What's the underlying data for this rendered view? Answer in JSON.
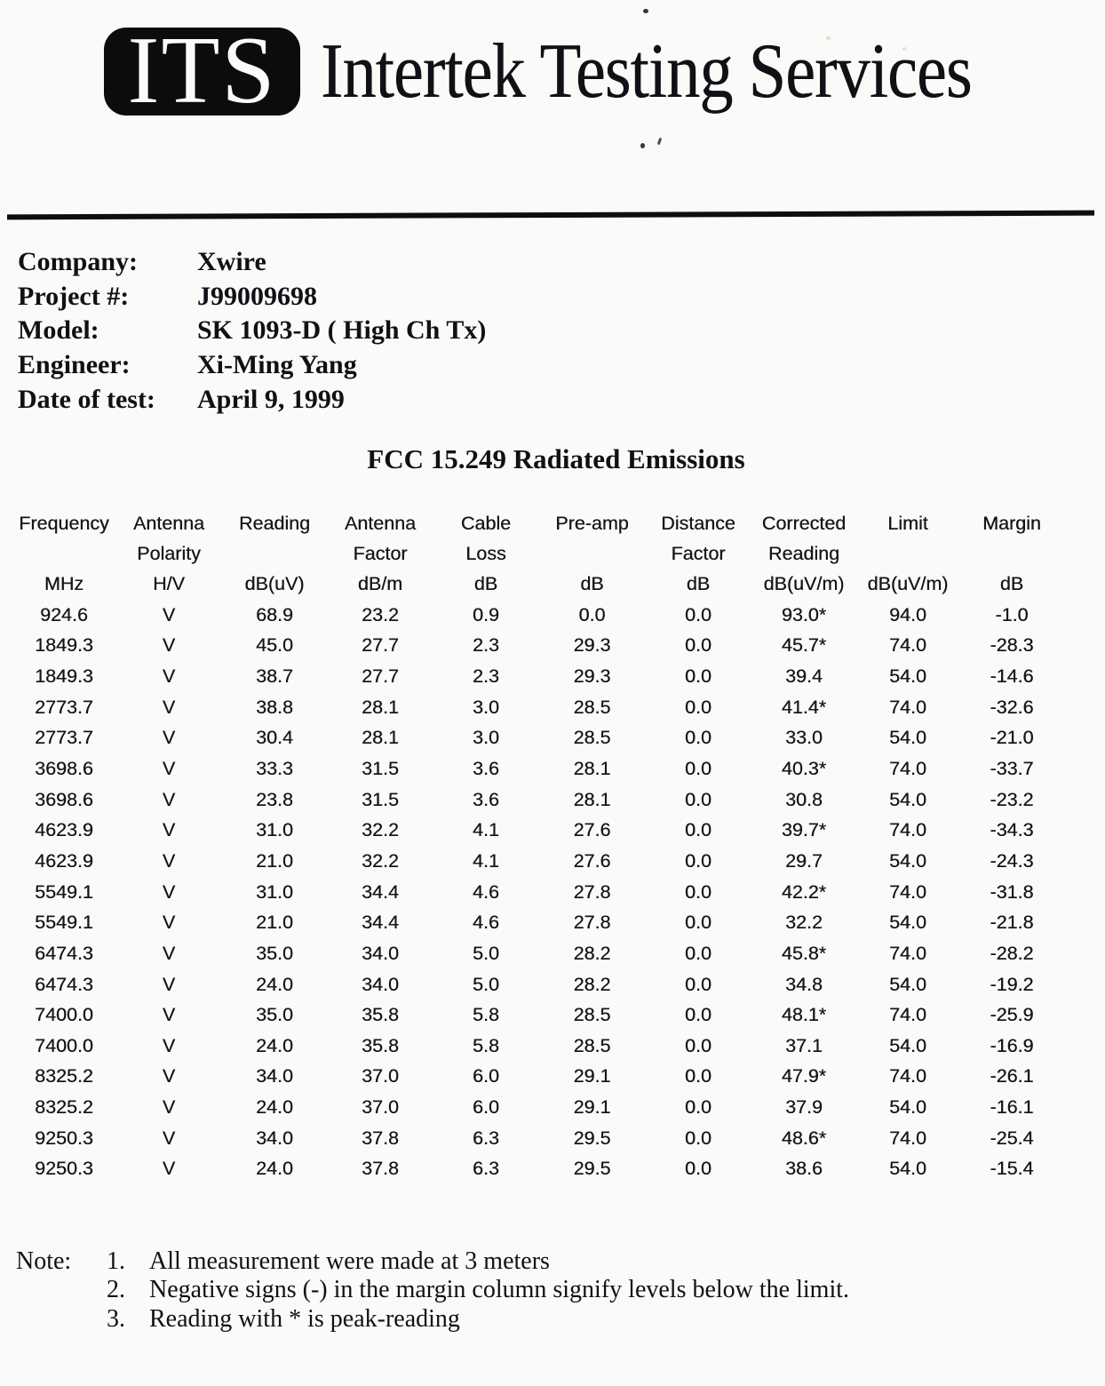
{
  "header": {
    "logo_text": "ITS",
    "brand": "Intertek Testing Services"
  },
  "info": {
    "rows": [
      {
        "label": "Company:",
        "value": "Xwire"
      },
      {
        "label": "Project #:",
        "value": "J99009698"
      },
      {
        "label": "Model:",
        "value": "SK 1093-D ( High Ch Tx)"
      },
      {
        "label": "Engineer:",
        "value": "Xi-Ming Yang"
      },
      {
        "label": "Date of test:",
        "value": "April 9, 1999"
      }
    ]
  },
  "table": {
    "title": "FCC 15.249 Radiated Emissions",
    "columns": [
      {
        "line1": "Frequency",
        "line2": "",
        "unit": "MHz"
      },
      {
        "line1": "Antenna",
        "line2": "Polarity",
        "unit": "H/V"
      },
      {
        "line1": "Reading",
        "line2": "",
        "unit": "dB(uV)"
      },
      {
        "line1": "Antenna",
        "line2": "Factor",
        "unit": "dB/m"
      },
      {
        "line1": "Cable",
        "line2": "Loss",
        "unit": "dB"
      },
      {
        "line1": "Pre-amp",
        "line2": "",
        "unit": "dB"
      },
      {
        "line1": "Distance",
        "line2": "Factor",
        "unit": "dB"
      },
      {
        "line1": "Corrected",
        "line2": "Reading",
        "unit": "dB(uV/m)"
      },
      {
        "line1": "Limit",
        "line2": "",
        "unit": "dB(uV/m)"
      },
      {
        "line1": "Margin",
        "line2": "",
        "unit": "dB"
      }
    ],
    "rows": [
      [
        "924.6",
        "V",
        "68.9",
        "23.2",
        "0.9",
        "0.0",
        "0.0",
        "93.0*",
        "94.0",
        "-1.0"
      ],
      [
        "1849.3",
        "V",
        "45.0",
        "27.7",
        "2.3",
        "29.3",
        "0.0",
        "45.7*",
        "74.0",
        "-28.3"
      ],
      [
        "1849.3",
        "V",
        "38.7",
        "27.7",
        "2.3",
        "29.3",
        "0.0",
        "39.4",
        "54.0",
        "-14.6"
      ],
      [
        "2773.7",
        "V",
        "38.8",
        "28.1",
        "3.0",
        "28.5",
        "0.0",
        "41.4*",
        "74.0",
        "-32.6"
      ],
      [
        "2773.7",
        "V",
        "30.4",
        "28.1",
        "3.0",
        "28.5",
        "0.0",
        "33.0",
        "54.0",
        "-21.0"
      ],
      [
        "3698.6",
        "V",
        "33.3",
        "31.5",
        "3.6",
        "28.1",
        "0.0",
        "40.3*",
        "74.0",
        "-33.7"
      ],
      [
        "3698.6",
        "V",
        "23.8",
        "31.5",
        "3.6",
        "28.1",
        "0.0",
        "30.8",
        "54.0",
        "-23.2"
      ],
      [
        "4623.9",
        "V",
        "31.0",
        "32.2",
        "4.1",
        "27.6",
        "0.0",
        "39.7*",
        "74.0",
        "-34.3"
      ],
      [
        "4623.9",
        "V",
        "21.0",
        "32.2",
        "4.1",
        "27.6",
        "0.0",
        "29.7",
        "54.0",
        "-24.3"
      ],
      [
        "5549.1",
        "V",
        "31.0",
        "34.4",
        "4.6",
        "27.8",
        "0.0",
        "42.2*",
        "74.0",
        "-31.8"
      ],
      [
        "5549.1",
        "V",
        "21.0",
        "34.4",
        "4.6",
        "27.8",
        "0.0",
        "32.2",
        "54.0",
        "-21.8"
      ],
      [
        "6474.3",
        "V",
        "35.0",
        "34.0",
        "5.0",
        "28.2",
        "0.0",
        "45.8*",
        "74.0",
        "-28.2"
      ],
      [
        "6474.3",
        "V",
        "24.0",
        "34.0",
        "5.0",
        "28.2",
        "0.0",
        "34.8",
        "54.0",
        "-19.2"
      ],
      [
        "7400.0",
        "V",
        "35.0",
        "35.8",
        "5.8",
        "28.5",
        "0.0",
        "48.1*",
        "74.0",
        "-25.9"
      ],
      [
        "7400.0",
        "V",
        "24.0",
        "35.8",
        "5.8",
        "28.5",
        "0.0",
        "37.1",
        "54.0",
        "-16.9"
      ],
      [
        "8325.2",
        "V",
        "34.0",
        "37.0",
        "6.0",
        "29.1",
        "0.0",
        "47.9*",
        "74.0",
        "-26.1"
      ],
      [
        "8325.2",
        "V",
        "24.0",
        "37.0",
        "6.0",
        "29.1",
        "0.0",
        "37.9",
        "54.0",
        "-16.1"
      ],
      [
        "9250.3",
        "V",
        "34.0",
        "37.8",
        "6.3",
        "29.5",
        "0.0",
        "48.6*",
        "74.0",
        "-25.4"
      ],
      [
        "9250.3",
        "V",
        "24.0",
        "37.8",
        "6.3",
        "29.5",
        "0.0",
        "38.6",
        "54.0",
        "-15.4"
      ]
    ]
  },
  "notes": {
    "label": "Note:",
    "items": [
      {
        "num": "1.",
        "text": "All measurement were made at 3 meters"
      },
      {
        "num": "2.",
        "text": "Negative signs (-) in the margin column signify levels below the limit."
      },
      {
        "num": "3.",
        "text": "Reading with * is peak-reading"
      }
    ]
  }
}
